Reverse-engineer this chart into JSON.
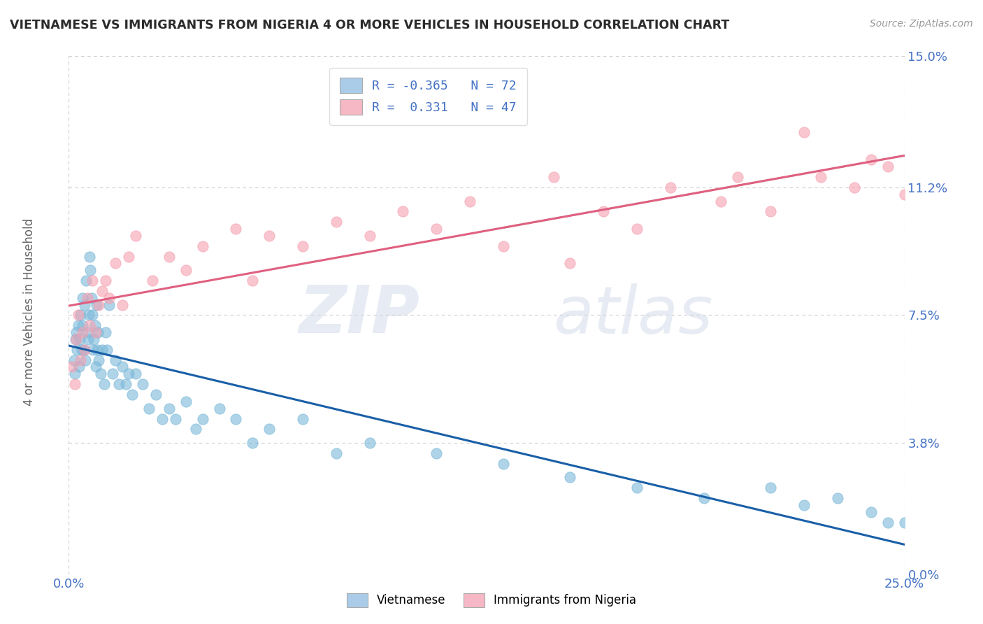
{
  "title": "VIETNAMESE VS IMMIGRANTS FROM NIGERIA 4 OR MORE VEHICLES IN HOUSEHOLD CORRELATION CHART",
  "source": "Source: ZipAtlas.com",
  "ylabel": "4 or more Vehicles in Household",
  "legend_labels": [
    "Vietnamese",
    "Immigrants from Nigeria"
  ],
  "r_values": [
    -0.365,
    0.331
  ],
  "n_values": [
    72,
    47
  ],
  "colors_scatter_blue": "#7ab8d9",
  "colors_scatter_pink": "#f5a0b0",
  "color_line_blue": "#1a5fa8",
  "color_line_pink": "#e06080",
  "color_line_gray_dash": "#c0c0c0",
  "colors_legend_box_blue": "#aacce8",
  "colors_legend_box_pink": "#f5b8c4",
  "xlim": [
    0.0,
    25.0
  ],
  "ylim": [
    0.0,
    15.0
  ],
  "yticks": [
    0.0,
    3.8,
    7.5,
    11.2,
    15.0
  ],
  "xticks": [
    0.0,
    25.0
  ],
  "watermark_zip": "ZIP",
  "watermark_atlas": "atlas",
  "background_color": "#ffffff",
  "title_color": "#2b2b2b",
  "axis_label_color": "#666666",
  "tick_label_color": "#4472c4",
  "grid_color": "#cccccc",
  "blue_x": [
    0.15,
    0.18,
    0.2,
    0.22,
    0.25,
    0.28,
    0.3,
    0.32,
    0.35,
    0.38,
    0.4,
    0.42,
    0.45,
    0.48,
    0.5,
    0.52,
    0.55,
    0.58,
    0.6,
    0.62,
    0.65,
    0.68,
    0.7,
    0.72,
    0.75,
    0.78,
    0.8,
    0.82,
    0.85,
    0.88,
    0.9,
    0.95,
    1.0,
    1.05,
    1.1,
    1.15,
    1.2,
    1.3,
    1.4,
    1.5,
    1.6,
    1.7,
    1.8,
    1.9,
    2.0,
    2.2,
    2.4,
    2.6,
    2.8,
    3.0,
    3.2,
    3.5,
    3.8,
    4.0,
    4.5,
    5.0,
    5.5,
    6.0,
    7.0,
    8.0,
    9.0,
    11.0,
    13.0,
    15.0,
    17.0,
    19.0,
    21.0,
    22.0,
    23.0,
    24.0,
    24.5,
    25.0
  ],
  "blue_y": [
    6.2,
    5.8,
    6.8,
    7.0,
    6.5,
    7.2,
    6.0,
    6.8,
    7.5,
    6.5,
    8.0,
    7.2,
    6.5,
    7.8,
    6.2,
    8.5,
    7.0,
    6.8,
    7.5,
    9.2,
    8.8,
    8.0,
    7.5,
    6.5,
    6.8,
    7.2,
    6.0,
    7.8,
    6.5,
    7.0,
    6.2,
    5.8,
    6.5,
    5.5,
    7.0,
    6.5,
    7.8,
    5.8,
    6.2,
    5.5,
    6.0,
    5.5,
    5.8,
    5.2,
    5.8,
    5.5,
    4.8,
    5.2,
    4.5,
    4.8,
    4.5,
    5.0,
    4.2,
    4.5,
    4.8,
    4.5,
    3.8,
    4.2,
    4.5,
    3.5,
    3.8,
    3.5,
    3.2,
    2.8,
    2.5,
    2.2,
    2.5,
    2.0,
    2.2,
    1.8,
    1.5,
    1.5
  ],
  "pink_x": [
    0.1,
    0.18,
    0.22,
    0.28,
    0.35,
    0.4,
    0.48,
    0.55,
    0.62,
    0.7,
    0.8,
    0.9,
    1.0,
    1.1,
    1.2,
    1.4,
    1.6,
    1.8,
    2.0,
    2.5,
    3.0,
    3.5,
    4.0,
    5.0,
    5.5,
    6.0,
    7.0,
    8.0,
    9.0,
    10.0,
    11.0,
    12.0,
    13.0,
    14.5,
    15.0,
    16.0,
    17.0,
    18.0,
    19.5,
    20.0,
    21.0,
    22.0,
    22.5,
    23.5,
    24.0,
    24.5,
    25.0
  ],
  "pink_y": [
    6.0,
    5.5,
    6.8,
    7.5,
    6.2,
    7.0,
    6.5,
    8.0,
    7.2,
    8.5,
    7.0,
    7.8,
    8.2,
    8.5,
    8.0,
    9.0,
    7.8,
    9.2,
    9.8,
    8.5,
    9.2,
    8.8,
    9.5,
    10.0,
    8.5,
    9.8,
    9.5,
    10.2,
    9.8,
    10.5,
    10.0,
    10.8,
    9.5,
    11.5,
    9.0,
    10.5,
    10.0,
    11.2,
    10.8,
    11.5,
    10.5,
    12.8,
    11.5,
    11.2,
    12.0,
    11.8,
    11.0
  ]
}
